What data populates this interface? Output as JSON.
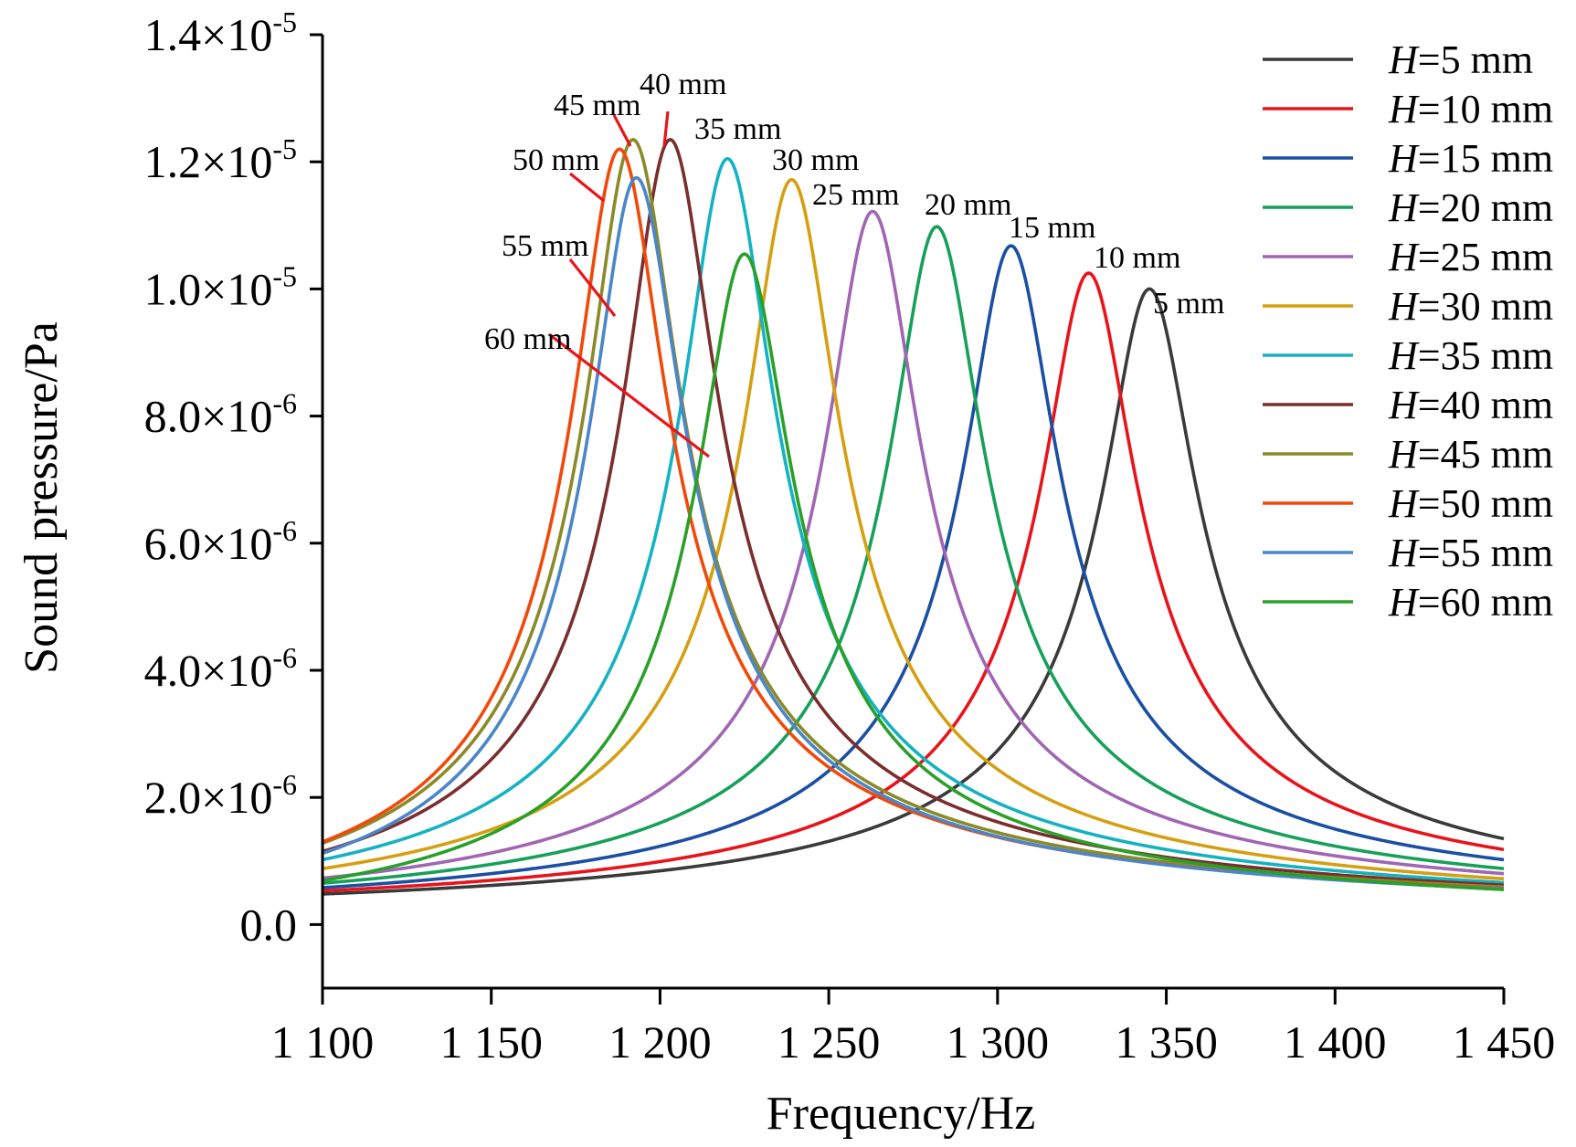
{
  "chart_data": {
    "type": "line",
    "title": "",
    "xlabel": "Frequency/Hz",
    "ylabel": "Sound pressure/Pa",
    "xlim": [
      1100,
      1450
    ],
    "ylim": [
      -1e-06,
      1.4e-05
    ],
    "grid": false,
    "legend_placement": "top-right",
    "x_ticks": [
      {
        "value": 1100,
        "label": "1 100"
      },
      {
        "value": 1150,
        "label": "1 150"
      },
      {
        "value": 1200,
        "label": "1 200"
      },
      {
        "value": 1250,
        "label": "1 250"
      },
      {
        "value": 1300,
        "label": "1 300"
      },
      {
        "value": 1350,
        "label": "1 350"
      },
      {
        "value": 1400,
        "label": "1 400"
      },
      {
        "value": 1450,
        "label": "1 450"
      }
    ],
    "y_ticks": [
      {
        "value": 0,
        "mantissa": "0.0",
        "exp": ""
      },
      {
        "value": 2e-06,
        "mantissa": "2.0×10",
        "exp": "-6"
      },
      {
        "value": 4e-06,
        "mantissa": "4.0×10",
        "exp": "-6"
      },
      {
        "value": 6e-06,
        "mantissa": "6.0×10",
        "exp": "-6"
      },
      {
        "value": 8e-06,
        "mantissa": "8.0×10",
        "exp": "-6"
      },
      {
        "value": 1e-05,
        "mantissa": "1.0×10",
        "exp": "-5"
      },
      {
        "value": 1.2e-05,
        "mantissa": "1.2×10",
        "exp": "-5"
      },
      {
        "value": 1.4e-05,
        "mantissa": "1.4×10",
        "exp": "-5"
      }
    ],
    "series": [
      {
        "name": "H=5 mm",
        "legend_prefix": "H",
        "legend_suffix": "=5 mm",
        "color": "#3a3a3a",
        "peak_x": 1345,
        "peak_y": 1e-05,
        "end_y": 1.35e-06,
        "start_y": 4.8e-07,
        "annotation": "5 mm"
      },
      {
        "name": "H=10 mm",
        "legend_prefix": "H",
        "legend_suffix": "=10 mm",
        "color": "#e8141c",
        "peak_x": 1327,
        "peak_y": 1.025e-05,
        "end_y": 1.18e-06,
        "start_y": 5.3e-07,
        "annotation": "10 mm"
      },
      {
        "name": "H=15 mm",
        "legend_prefix": "H",
        "legend_suffix": "=15 mm",
        "color": "#1a4fa3",
        "peak_x": 1304,
        "peak_y": 1.068e-05,
        "end_y": 1.02e-06,
        "start_y": 5.8e-07,
        "annotation": "15 mm"
      },
      {
        "name": "H=20 mm",
        "legend_prefix": "H",
        "legend_suffix": "=20 mm",
        "color": "#17a05a",
        "peak_x": 1282,
        "peak_y": 1.098e-05,
        "end_y": 8.8e-07,
        "start_y": 6.5e-07,
        "annotation": "20 mm"
      },
      {
        "name": "H=25 mm",
        "legend_prefix": "H",
        "legend_suffix": "=25 mm",
        "color": "#a066b4",
        "peak_x": 1263,
        "peak_y": 1.122e-05,
        "end_y": 8e-07,
        "start_y": 7.3e-07,
        "annotation": "25 mm"
      },
      {
        "name": "H=30 mm",
        "legend_prefix": "H",
        "legend_suffix": "=30 mm",
        "color": "#d4a012",
        "peak_x": 1239,
        "peak_y": 1.172e-05,
        "end_y": 7.2e-07,
        "start_y": 8.8e-07,
        "annotation": "30 mm"
      },
      {
        "name": "H=35 mm",
        "legend_prefix": "H",
        "legend_suffix": "=35 mm",
        "color": "#15b2c2",
        "peak_x": 1220,
        "peak_y": 1.205e-05,
        "end_y": 6.6e-07,
        "start_y": 1.02e-06,
        "annotation": "35 mm"
      },
      {
        "name": "H=40 mm",
        "legend_prefix": "H",
        "legend_suffix": "=40 mm",
        "color": "#7a2e2e",
        "peak_x": 1203,
        "peak_y": 1.235e-05,
        "end_y": 6.2e-07,
        "start_y": 1.15e-06,
        "annotation": "40 mm"
      },
      {
        "name": "H=45 mm",
        "legend_prefix": "H",
        "legend_suffix": "=45 mm",
        "color": "#8a8a2a",
        "peak_x": 1192,
        "peak_y": 1.235e-05,
        "end_y": 5.9e-07,
        "start_y": 1.28e-06,
        "annotation": "45 mm"
      },
      {
        "name": "H=50 mm",
        "legend_prefix": "H",
        "legend_suffix": "=50 mm",
        "color": "#f04a0a",
        "peak_x": 1188,
        "peak_y": 1.22e-05,
        "end_y": 5.7e-07,
        "start_y": 1.3e-06,
        "annotation": "50 mm"
      },
      {
        "name": "H=55 mm",
        "legend_prefix": "H",
        "legend_suffix": "=55 mm",
        "color": "#4a86c8",
        "peak_x": 1193,
        "peak_y": 1.175e-05,
        "end_y": 5.6e-07,
        "start_y": 1.12e-06,
        "annotation": "55 mm"
      },
      {
        "name": "H=60 mm",
        "legend_prefix": "H",
        "legend_suffix": "=60 mm",
        "color": "#2aa02a",
        "peak_x": 1225,
        "peak_y": 1.055e-05,
        "end_y": 5.5e-07,
        "start_y": 6.9e-07,
        "annotation": "60 mm"
      }
    ]
  }
}
